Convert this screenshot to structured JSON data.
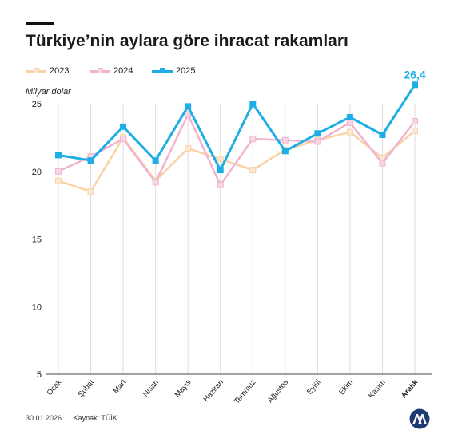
{
  "header": {
    "title": "Türkiye’nin aylara göre ihracat rakamları"
  },
  "footer": {
    "date": "30.01.2026",
    "source": "Kaynak: TÜİK"
  },
  "colors": {
    "s2023": "#f9d3a5",
    "s2024": "#f2b3d0",
    "s2025": "#1eaee6",
    "grid": "#dddddd",
    "axis": "#444444",
    "logo": "#1e3a73"
  },
  "chart_data": {
    "type": "line",
    "title": "Türkiye’nin aylara göre ihracat rakamları",
    "ylabel": "Milyar dolar",
    "xlabel": "",
    "ylim": [
      5,
      25
    ],
    "yticks": [
      5,
      10,
      15,
      20,
      25
    ],
    "categories": [
      "Ocak",
      "Şubat",
      "Mart",
      "Nisan",
      "Mayıs",
      "Haziran",
      "Temmuz",
      "Ağustos",
      "Eylül",
      "Ekim",
      "Kasım",
      "Aralık"
    ],
    "highlight_category": "Aralık",
    "grid": "vertical",
    "legend_position": "top-left",
    "series": [
      {
        "name": "2023",
        "color": "#f9d3a5",
        "values": [
          19.3,
          18.5,
          22.5,
          19.3,
          21.7,
          20.9,
          20.1,
          21.6,
          22.3,
          22.9,
          21.0,
          23.0
        ]
      },
      {
        "name": "2024",
        "color": "#f2b3d0",
        "values": [
          20.0,
          21.1,
          22.4,
          19.2,
          24.2,
          19.0,
          22.4,
          22.3,
          22.2,
          23.6,
          20.6,
          23.7
        ]
      },
      {
        "name": "2025",
        "color": "#1eaee6",
        "values": [
          21.2,
          20.8,
          23.3,
          20.8,
          24.8,
          20.1,
          25.0,
          21.5,
          22.8,
          24.0,
          22.7,
          26.4
        ]
      }
    ],
    "annotations": [
      {
        "series": "2025",
        "category": "Aralık",
        "text": "26,4"
      }
    ]
  }
}
